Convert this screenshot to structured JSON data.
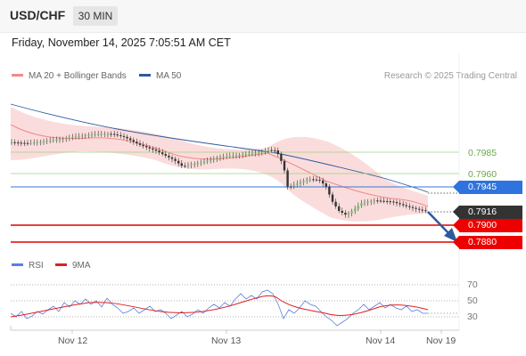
{
  "header": {
    "symbol": "USD/CHF",
    "timeframe": "30 MIN"
  },
  "datetime": "Friday, November 14, 2025 7:05:51 AM CET",
  "legend": {
    "ma_bollinger": "MA 20 + Bollinger Bands",
    "ma50": "MA 50",
    "copyright": "Research © 2025 Trading Central"
  },
  "colors": {
    "bollinger_fill": "#fbdcdc",
    "ma20": "#f28a8a",
    "ma50": "#2e5a9c",
    "green_level": "#7cc25a",
    "blue_level": "#3377dd",
    "red_level": "#ee0000",
    "last_price": "#333333",
    "rsi": "#5b7fe0",
    "rsi_ma": "#e02020",
    "arrow": "#2e5a9c"
  },
  "price_levels": [
    {
      "label": "0.7985",
      "kind": "green"
    },
    {
      "label": "0.7960",
      "kind": "green"
    },
    {
      "label": "0.7945",
      "kind": "blue"
    },
    {
      "label": "0.7916",
      "kind": "last"
    },
    {
      "label": "0.7900",
      "kind": "red"
    },
    {
      "label": "0.7880",
      "kind": "red"
    }
  ],
  "rsi_panel": {
    "legend_rsi": "RSI",
    "legend_ma": "9MA",
    "levels": [
      "70",
      "50",
      "30"
    ]
  },
  "x_axis": [
    "Nov 12",
    "Nov 13",
    "Nov 14",
    "Nov 19"
  ]
}
